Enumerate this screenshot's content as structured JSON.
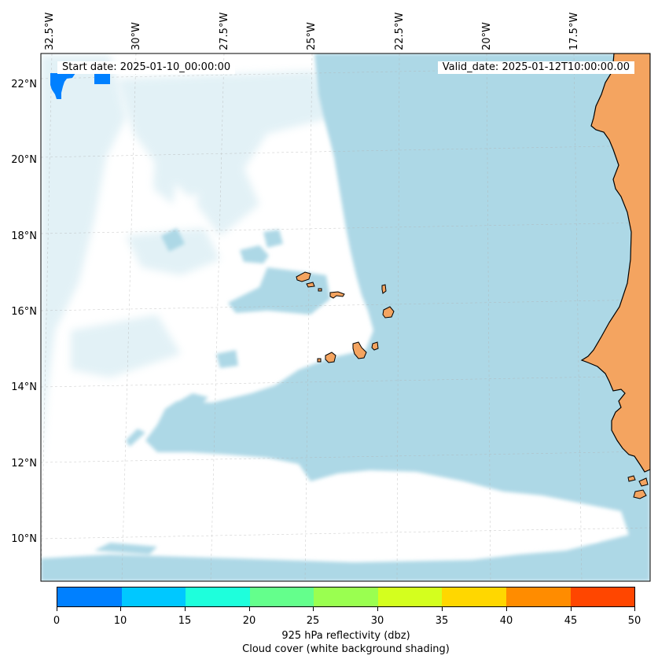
{
  "header": {
    "start_date": "Start date: 2025-01-10_00:00:00",
    "valid_date": "Valid_date: 2025-01-12T10:00:00.00"
  },
  "axes": {
    "lon_labels": [
      "32.5°W",
      "30°W",
      "27.5°W",
      "25°W",
      "22.5°W",
      "20°W",
      "17.5°W"
    ],
    "lat_labels": [
      "22°N",
      "20°N",
      "18°N",
      "16°N",
      "14°N",
      "12°N",
      "10°N"
    ]
  },
  "colors": {
    "ocean_cloud": "#add8e6",
    "land": "#f4a460",
    "reflectivity_patch": "#0080ff"
  },
  "colorbar": {
    "ticks": [
      "0",
      "10",
      "15",
      "20",
      "25",
      "30",
      "35",
      "40",
      "45",
      "50"
    ],
    "colors": [
      "#0080ff",
      "#00c8ff",
      "#1effdc",
      "#64ff8c",
      "#9aff50",
      "#d4ff1e",
      "#ffd700",
      "#ff8c00",
      "#ff4600"
    ],
    "label_1": "925 hPa reflectivity (dbz)",
    "label_2": "Cloud cover (white background shading)"
  }
}
